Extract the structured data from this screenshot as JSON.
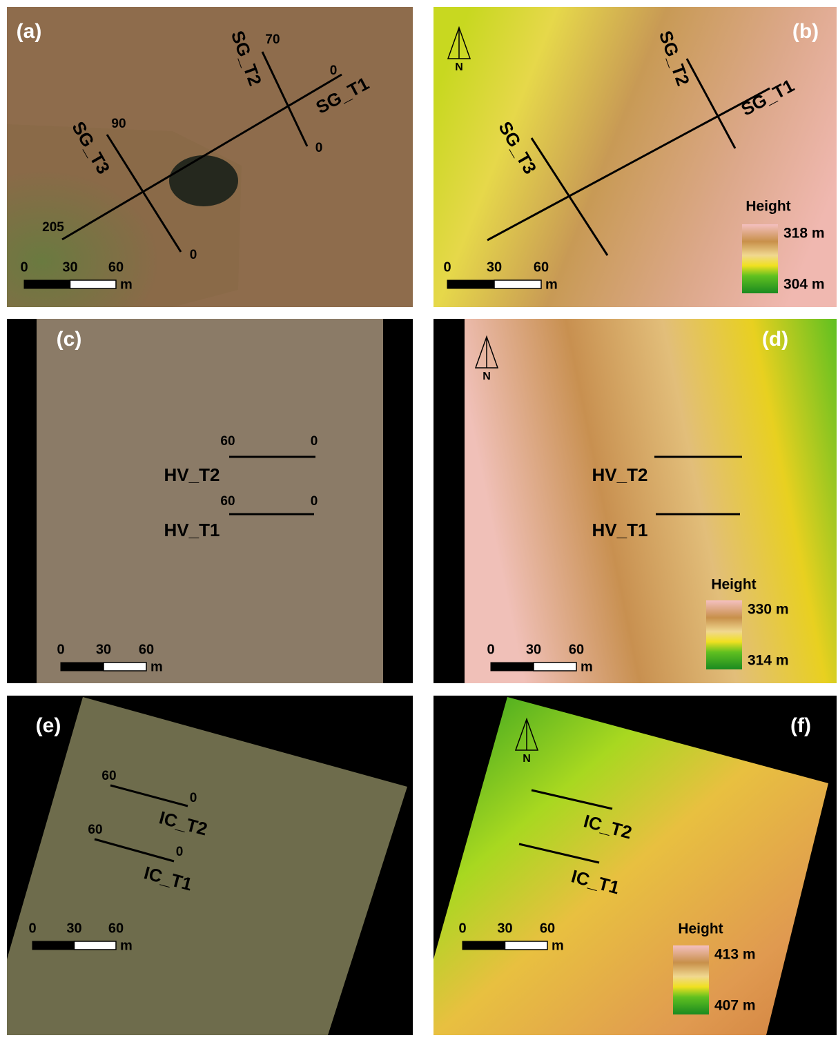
{
  "panels": [
    {
      "label": "(a)",
      "transects": [
        {
          "name": "SG_T1",
          "start": "205",
          "end": "0"
        },
        {
          "name": "SG_T2",
          "start": "70",
          "end": "0"
        },
        {
          "name": "SG_T3",
          "start": "90",
          "end": "0"
        }
      ],
      "scale_bar": {
        "ticks": [
          "0",
          "30",
          "60"
        ],
        "unit": "m"
      }
    },
    {
      "label": "(b)",
      "north": "N",
      "transects": [
        {
          "name": "SG_T1"
        },
        {
          "name": "SG_T2"
        },
        {
          "name": "SG_T3"
        }
      ],
      "legend": {
        "title": "Height",
        "max": "318 m",
        "min": "304 m"
      },
      "scale_bar": {
        "ticks": [
          "0",
          "30",
          "60"
        ],
        "unit": "m"
      }
    },
    {
      "label": "(c)",
      "transects": [
        {
          "name": "HV_T2",
          "start": "60",
          "end": "0"
        },
        {
          "name": "HV_T1",
          "start": "60",
          "end": "0"
        }
      ],
      "scale_bar": {
        "ticks": [
          "0",
          "30",
          "60"
        ],
        "unit": "m"
      }
    },
    {
      "label": "(d)",
      "north": "N",
      "transects": [
        {
          "name": "HV_T2"
        },
        {
          "name": "HV_T1"
        }
      ],
      "legend": {
        "title": "Height",
        "max": "330 m",
        "min": "314 m"
      },
      "scale_bar": {
        "ticks": [
          "0",
          "30",
          "60"
        ],
        "unit": "m"
      }
    },
    {
      "label": "(e)",
      "transects": [
        {
          "name": "IC_T2",
          "start": "60",
          "end": "0"
        },
        {
          "name": "IC_T1",
          "start": "60",
          "end": "0"
        }
      ],
      "scale_bar": {
        "ticks": [
          "0",
          "30",
          "60"
        ],
        "unit": "m"
      }
    },
    {
      "label": "(f)",
      "north": "N",
      "transects": [
        {
          "name": "IC_T2"
        },
        {
          "name": "IC_T1"
        }
      ],
      "legend": {
        "title": "Height",
        "max": "413 m",
        "min": "407 m"
      },
      "scale_bar": {
        "ticks": [
          "0",
          "30",
          "60"
        ],
        "unit": "m"
      }
    }
  ]
}
